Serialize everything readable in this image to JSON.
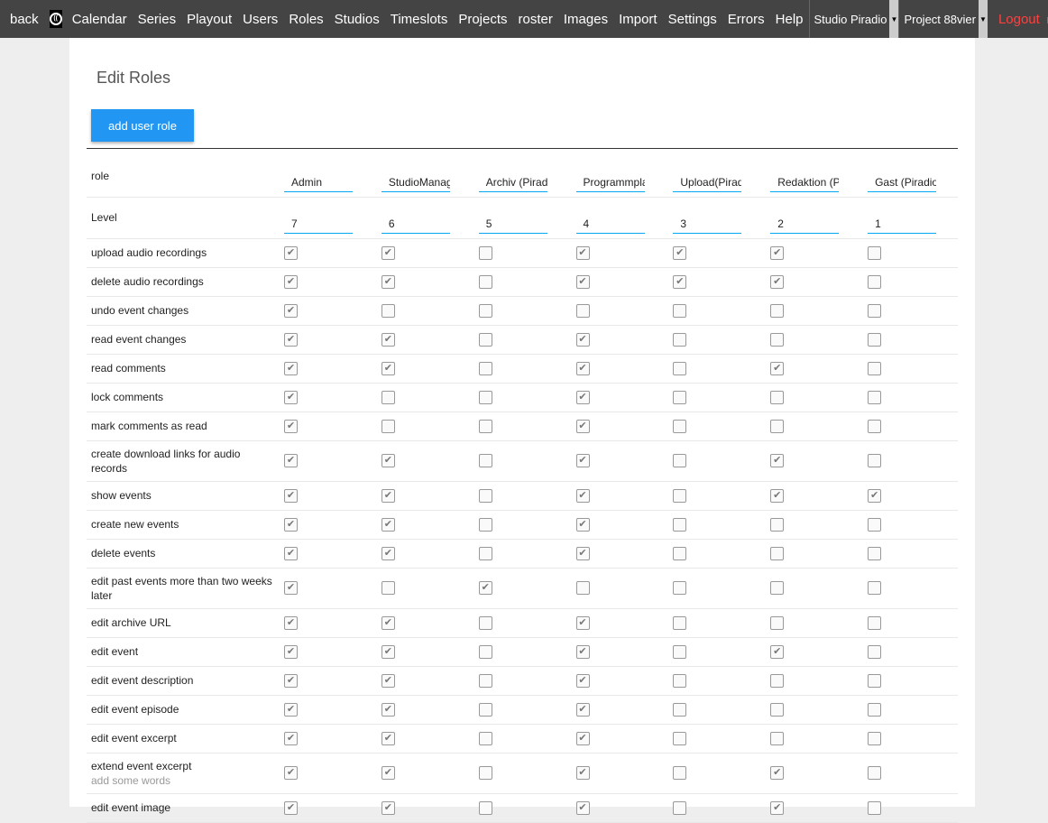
{
  "nav": {
    "back": "back",
    "items": [
      "Calendar",
      "Series",
      "Playout",
      "Users",
      "Roles",
      "Studios",
      "Timeslots",
      "Projects",
      "roster",
      "Images",
      "Import",
      "Settings",
      "Errors",
      "Help"
    ],
    "studio": "Studio Piradio",
    "project": "Project 88vier",
    "logout": "Logout",
    "user": "milan"
  },
  "page": {
    "title": "Edit Roles",
    "add_button": "add user role"
  },
  "table": {
    "role_label": "role",
    "level_label": "Level",
    "roles": [
      "Admin",
      "StudioManager",
      "Archiv (Piradio)",
      "Programmplanung",
      "Upload(Piradio)",
      "Redaktion (Piradio)",
      "Gast (Piradio)"
    ],
    "levels": [
      "7",
      "6",
      "5",
      "4",
      "3",
      "2",
      "1"
    ],
    "permissions": [
      {
        "label": "upload audio recordings",
        "values": [
          1,
          1,
          0,
          1,
          1,
          1,
          0
        ]
      },
      {
        "label": "delete audio recordings",
        "values": [
          1,
          1,
          0,
          1,
          1,
          1,
          0
        ]
      },
      {
        "label": "undo event changes",
        "values": [
          1,
          0,
          0,
          0,
          0,
          0,
          0
        ]
      },
      {
        "label": "read event changes",
        "values": [
          1,
          1,
          0,
          1,
          0,
          0,
          0
        ]
      },
      {
        "label": "read comments",
        "values": [
          1,
          1,
          0,
          1,
          0,
          1,
          0
        ]
      },
      {
        "label": "lock comments",
        "values": [
          1,
          0,
          0,
          1,
          0,
          0,
          0
        ]
      },
      {
        "label": "mark comments as read",
        "values": [
          1,
          0,
          0,
          1,
          0,
          0,
          0
        ]
      },
      {
        "label": "create download links for audio records",
        "values": [
          1,
          1,
          0,
          1,
          0,
          1,
          0
        ],
        "tall": true
      },
      {
        "label": "show events",
        "values": [
          1,
          1,
          0,
          1,
          0,
          1,
          1
        ]
      },
      {
        "label": "create new events",
        "values": [
          1,
          1,
          0,
          1,
          0,
          0,
          0
        ]
      },
      {
        "label": "delete events",
        "values": [
          1,
          1,
          0,
          1,
          0,
          0,
          0
        ]
      },
      {
        "label": "edit past events more than two weeks later",
        "values": [
          1,
          0,
          1,
          0,
          0,
          0,
          0
        ],
        "tall": true
      },
      {
        "label": "edit archive URL",
        "values": [
          1,
          1,
          0,
          1,
          0,
          0,
          0
        ]
      },
      {
        "label": "edit event",
        "values": [
          1,
          1,
          0,
          1,
          0,
          1,
          0
        ]
      },
      {
        "label": "edit event description",
        "values": [
          1,
          1,
          0,
          1,
          0,
          0,
          0
        ]
      },
      {
        "label": "edit event episode",
        "values": [
          1,
          1,
          0,
          1,
          0,
          0,
          0
        ]
      },
      {
        "label": "edit event excerpt",
        "values": [
          1,
          1,
          0,
          1,
          0,
          0,
          0
        ]
      },
      {
        "label": "extend event excerpt",
        "sub": "add some words",
        "values": [
          1,
          1,
          0,
          1,
          0,
          1,
          0
        ],
        "tall": true
      },
      {
        "label": "edit event image",
        "values": [
          1,
          1,
          0,
          1,
          0,
          1,
          0
        ]
      }
    ]
  }
}
